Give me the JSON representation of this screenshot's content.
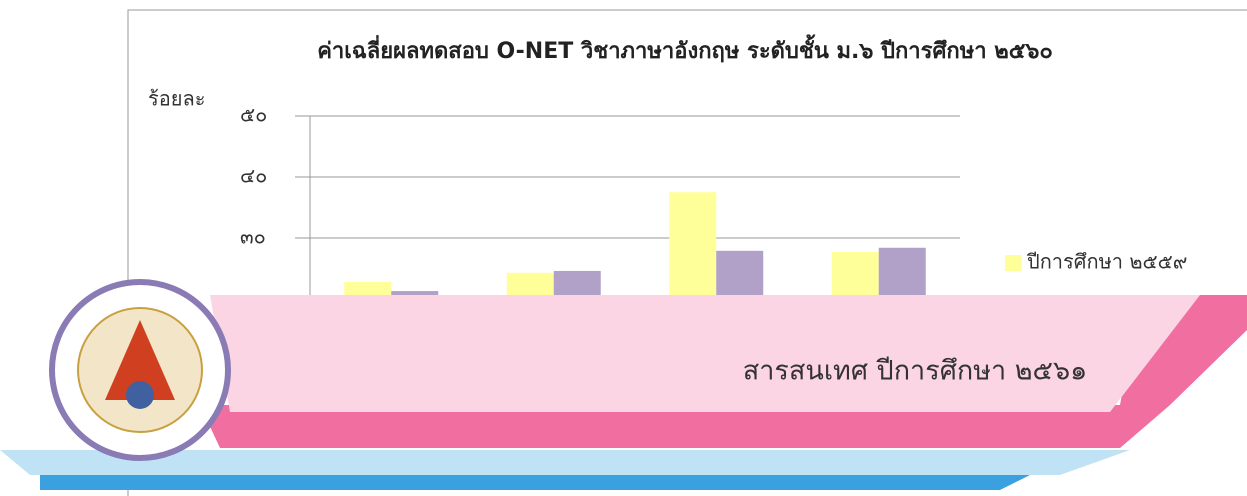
{
  "chart_data": {
    "type": "bar",
    "title": "ค่าเฉลี่ยผลทดสอบ O-NET วิชาภาษาอังกฤษ ระดับชั้น ม.๖ ปีการศึกษา ๒๕๖๐",
    "y_label": "ร้อยละ",
    "categories": [
      null,
      null,
      null,
      null
    ],
    "series": [
      {
        "name": "ปีการศึกษา ๒๕๕๙",
        "color": "#ffff99",
        "values": [
          22.8,
          24.3,
          37.5,
          27.7
        ]
      },
      {
        "name": null,
        "color": "#b1a0c7",
        "values": [
          21.3,
          24.6,
          27.9,
          28.4
        ]
      }
    ],
    "ylim": [
      0,
      50
    ],
    "yticks": [
      {
        "value": 30,
        "label": "๓๐"
      },
      {
        "value": 40,
        "label": "๔๐"
      },
      {
        "value": 50,
        "label": "๕๐"
      }
    ],
    "grid": true,
    "legend": "right"
  },
  "banner": {
    "text": "สารสนเทศ ปีการศึกษา ๒๕๖๑"
  }
}
